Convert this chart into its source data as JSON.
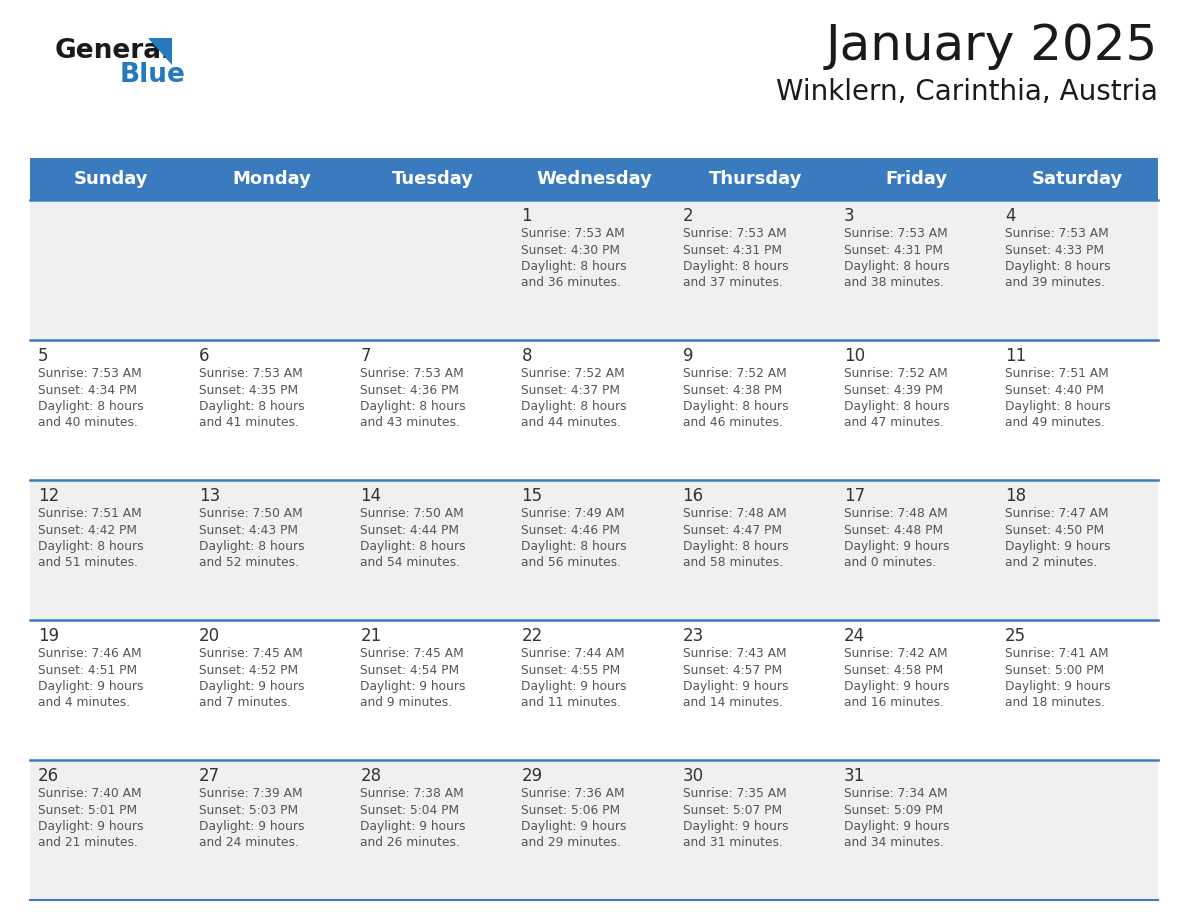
{
  "title": "January 2025",
  "subtitle": "Winklern, Carinthia, Austria",
  "days_of_week": [
    "Sunday",
    "Monday",
    "Tuesday",
    "Wednesday",
    "Thursday",
    "Friday",
    "Saturday"
  ],
  "header_bg": "#3a7abf",
  "header_text": "#ffffff",
  "cell_bg_even": "#f0f0f0",
  "cell_bg_odd": "#ffffff",
  "day_num_color": "#333333",
  "info_text_color": "#555555",
  "separator_color": "#3a7abf",
  "background": "#ffffff",
  "calendar_data": [
    [
      null,
      null,
      null,
      {
        "day": "1",
        "sunrise": "7:53 AM",
        "sunset": "4:30 PM",
        "daylight": "8 hours",
        "daylight2": "and 36 minutes."
      },
      {
        "day": "2",
        "sunrise": "7:53 AM",
        "sunset": "4:31 PM",
        "daylight": "8 hours",
        "daylight2": "and 37 minutes."
      },
      {
        "day": "3",
        "sunrise": "7:53 AM",
        "sunset": "4:31 PM",
        "daylight": "8 hours",
        "daylight2": "and 38 minutes."
      },
      {
        "day": "4",
        "sunrise": "7:53 AM",
        "sunset": "4:33 PM",
        "daylight": "8 hours",
        "daylight2": "and 39 minutes."
      }
    ],
    [
      {
        "day": "5",
        "sunrise": "7:53 AM",
        "sunset": "4:34 PM",
        "daylight": "8 hours",
        "daylight2": "and 40 minutes."
      },
      {
        "day": "6",
        "sunrise": "7:53 AM",
        "sunset": "4:35 PM",
        "daylight": "8 hours",
        "daylight2": "and 41 minutes."
      },
      {
        "day": "7",
        "sunrise": "7:53 AM",
        "sunset": "4:36 PM",
        "daylight": "8 hours",
        "daylight2": "and 43 minutes."
      },
      {
        "day": "8",
        "sunrise": "7:52 AM",
        "sunset": "4:37 PM",
        "daylight": "8 hours",
        "daylight2": "and 44 minutes."
      },
      {
        "day": "9",
        "sunrise": "7:52 AM",
        "sunset": "4:38 PM",
        "daylight": "8 hours",
        "daylight2": "and 46 minutes."
      },
      {
        "day": "10",
        "sunrise": "7:52 AM",
        "sunset": "4:39 PM",
        "daylight": "8 hours",
        "daylight2": "and 47 minutes."
      },
      {
        "day": "11",
        "sunrise": "7:51 AM",
        "sunset": "4:40 PM",
        "daylight": "8 hours",
        "daylight2": "and 49 minutes."
      }
    ],
    [
      {
        "day": "12",
        "sunrise": "7:51 AM",
        "sunset": "4:42 PM",
        "daylight": "8 hours",
        "daylight2": "and 51 minutes."
      },
      {
        "day": "13",
        "sunrise": "7:50 AM",
        "sunset": "4:43 PM",
        "daylight": "8 hours",
        "daylight2": "and 52 minutes."
      },
      {
        "day": "14",
        "sunrise": "7:50 AM",
        "sunset": "4:44 PM",
        "daylight": "8 hours",
        "daylight2": "and 54 minutes."
      },
      {
        "day": "15",
        "sunrise": "7:49 AM",
        "sunset": "4:46 PM",
        "daylight": "8 hours",
        "daylight2": "and 56 minutes."
      },
      {
        "day": "16",
        "sunrise": "7:48 AM",
        "sunset": "4:47 PM",
        "daylight": "8 hours",
        "daylight2": "and 58 minutes."
      },
      {
        "day": "17",
        "sunrise": "7:48 AM",
        "sunset": "4:48 PM",
        "daylight": "9 hours",
        "daylight2": "and 0 minutes."
      },
      {
        "day": "18",
        "sunrise": "7:47 AM",
        "sunset": "4:50 PM",
        "daylight": "9 hours",
        "daylight2": "and 2 minutes."
      }
    ],
    [
      {
        "day": "19",
        "sunrise": "7:46 AM",
        "sunset": "4:51 PM",
        "daylight": "9 hours",
        "daylight2": "and 4 minutes."
      },
      {
        "day": "20",
        "sunrise": "7:45 AM",
        "sunset": "4:52 PM",
        "daylight": "9 hours",
        "daylight2": "and 7 minutes."
      },
      {
        "day": "21",
        "sunrise": "7:45 AM",
        "sunset": "4:54 PM",
        "daylight": "9 hours",
        "daylight2": "and 9 minutes."
      },
      {
        "day": "22",
        "sunrise": "7:44 AM",
        "sunset": "4:55 PM",
        "daylight": "9 hours",
        "daylight2": "and 11 minutes."
      },
      {
        "day": "23",
        "sunrise": "7:43 AM",
        "sunset": "4:57 PM",
        "daylight": "9 hours",
        "daylight2": "and 14 minutes."
      },
      {
        "day": "24",
        "sunrise": "7:42 AM",
        "sunset": "4:58 PM",
        "daylight": "9 hours",
        "daylight2": "and 16 minutes."
      },
      {
        "day": "25",
        "sunrise": "7:41 AM",
        "sunset": "5:00 PM",
        "daylight": "9 hours",
        "daylight2": "and 18 minutes."
      }
    ],
    [
      {
        "day": "26",
        "sunrise": "7:40 AM",
        "sunset": "5:01 PM",
        "daylight": "9 hours",
        "daylight2": "and 21 minutes."
      },
      {
        "day": "27",
        "sunrise": "7:39 AM",
        "sunset": "5:03 PM",
        "daylight": "9 hours",
        "daylight2": "and 24 minutes."
      },
      {
        "day": "28",
        "sunrise": "7:38 AM",
        "sunset": "5:04 PM",
        "daylight": "9 hours",
        "daylight2": "and 26 minutes."
      },
      {
        "day": "29",
        "sunrise": "7:36 AM",
        "sunset": "5:06 PM",
        "daylight": "9 hours",
        "daylight2": "and 29 minutes."
      },
      {
        "day": "30",
        "sunrise": "7:35 AM",
        "sunset": "5:07 PM",
        "daylight": "9 hours",
        "daylight2": "and 31 minutes."
      },
      {
        "day": "31",
        "sunrise": "7:34 AM",
        "sunset": "5:09 PM",
        "daylight": "9 hours",
        "daylight2": "and 34 minutes."
      },
      null
    ]
  ]
}
